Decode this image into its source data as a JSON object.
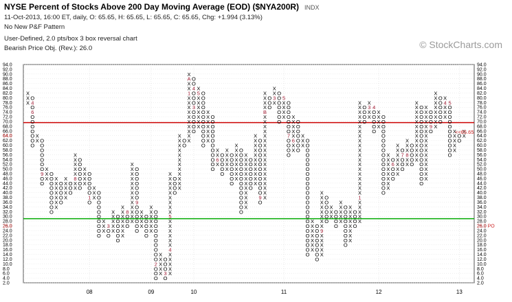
{
  "header": {
    "title": "NYSE Percent of Stocks Above 200 Day Moving Average (EOD) ($NYA200R)",
    "exchange": "INDX",
    "line1": "11-Oct-2013, 16:00 ET, daily, O: 65.65, H: 65.65, L: 65.65, C: 65.65, Chg: +1.994 (3.13%)",
    "line2": "No New P&F Pattern",
    "line3": "User-Defined, 2.0 pts/box 3 box reversal chart",
    "line4": "Bearish Price Obj. (Rev.): 26.0"
  },
  "watermark": "© StockCharts.com",
  "colors": {
    "x_mark": "#000000",
    "o_mark": "#000000",
    "month_mark": "#a01830",
    "resistance": "#cc0000",
    "support": "#00aa00",
    "grid": "#dcdcdc",
    "last_price": "#cc2222"
  },
  "chart_data": {
    "type": "point-and-figure",
    "box_size": 2.0,
    "reversal": 3,
    "ylim": [
      2,
      94
    ],
    "y_ticks": [
      "2.0",
      "4.0",
      "6.0",
      "8.0",
      "10.0",
      "12.0",
      "14.0",
      "16.0",
      "18.0",
      "20.0",
      "22.0",
      "24.0",
      "26.0",
      "28.0",
      "30.0",
      "32.0",
      "34.0",
      "36.0",
      "38.0",
      "40.0",
      "42.0",
      "44.0",
      "46.0",
      "48.0",
      "50.0",
      "52.0",
      "54.0",
      "56.0",
      "58.0",
      "60.0",
      "62.0",
      "64.0",
      "66.0",
      "68.0",
      "70.0",
      "72.0",
      "74.0",
      "76.0",
      "78.0",
      "80.0",
      "82.0",
      "84.0",
      "86.0",
      "88.0",
      "90.0",
      "92.0",
      "94.0"
    ],
    "year_labels": [
      {
        "label": "08",
        "col": 13
      },
      {
        "label": "09",
        "col": 26
      },
      {
        "label": "10",
        "col": 35
      },
      {
        "label": "11",
        "col": 54
      },
      {
        "label": "12",
        "col": 74
      },
      {
        "label": "13",
        "col": 91
      }
    ],
    "columns": [
      {
        "t": "X",
        "lo": 78,
        "hi": 82
      },
      {
        "t": "O",
        "lo": 60,
        "hi": 80
      },
      {
        "t": "X",
        "lo": 62,
        "hi": 64
      },
      {
        "t": "O",
        "lo": 44,
        "hi": 62
      },
      {
        "t": "X",
        "lo": 46,
        "hi": 50
      },
      {
        "t": "O",
        "lo": 32,
        "hi": 48
      },
      {
        "t": "X",
        "lo": 34,
        "hi": 46
      },
      {
        "t": "O",
        "lo": 36,
        "hi": 44
      },
      {
        "t": "X",
        "lo": 38,
        "hi": 46
      },
      {
        "t": "O",
        "lo": 40,
        "hi": 44
      },
      {
        "t": "X",
        "lo": 42,
        "hi": 56
      },
      {
        "t": "O",
        "lo": 42,
        "hi": 54
      },
      {
        "t": "X",
        "lo": 44,
        "hi": 50
      },
      {
        "t": "O",
        "lo": 36,
        "hi": 48
      },
      {
        "t": "X",
        "lo": 38,
        "hi": 42
      },
      {
        "t": "O",
        "lo": 22,
        "hi": 40
      },
      {
        "t": "X",
        "lo": 24,
        "hi": 28
      },
      {
        "t": "O",
        "lo": 22,
        "hi": 26
      },
      {
        "t": "X",
        "lo": 24,
        "hi": 32
      },
      {
        "t": "O",
        "lo": 20,
        "hi": 30
      },
      {
        "t": "X",
        "lo": 22,
        "hi": 34
      },
      {
        "t": "O",
        "lo": 26,
        "hi": 32
      },
      {
        "t": "X",
        "lo": 28,
        "hi": 52
      },
      {
        "t": "O",
        "lo": 24,
        "hi": 50
      },
      {
        "t": "X",
        "lo": 26,
        "hi": 32
      },
      {
        "t": "O",
        "lo": 22,
        "hi": 30
      },
      {
        "t": "X",
        "lo": 24,
        "hi": 34
      },
      {
        "t": "O",
        "lo": 4,
        "hi": 32
      },
      {
        "t": "X",
        "lo": 6,
        "hi": 14
      },
      {
        "t": "O",
        "lo": 4,
        "hi": 12
      },
      {
        "t": "X",
        "lo": 6,
        "hi": 48
      },
      {
        "t": "O",
        "lo": 40,
        "hi": 46
      },
      {
        "t": "X",
        "lo": 42,
        "hi": 64
      },
      {
        "t": "O",
        "lo": 60,
        "hi": 62
      },
      {
        "t": "X",
        "lo": 62,
        "hi": 90
      },
      {
        "t": "O",
        "lo": 66,
        "hi": 88
      },
      {
        "t": "X",
        "lo": 68,
        "hi": 84
      },
      {
        "t": "O",
        "lo": 60,
        "hi": 82
      },
      {
        "t": "X",
        "lo": 62,
        "hi": 74
      },
      {
        "t": "O",
        "lo": 50,
        "hi": 72
      },
      {
        "t": "X",
        "lo": 52,
        "hi": 58
      },
      {
        "t": "O",
        "lo": 48,
        "hi": 56
      },
      {
        "t": "X",
        "lo": 50,
        "hi": 58
      },
      {
        "t": "O",
        "lo": 44,
        "hi": 56
      },
      {
        "t": "X",
        "lo": 46,
        "hi": 60
      },
      {
        "t": "O",
        "lo": 32,
        "hi": 58
      },
      {
        "t": "X",
        "lo": 34,
        "hi": 56
      },
      {
        "t": "O",
        "lo": 42,
        "hi": 54
      },
      {
        "t": "X",
        "lo": 44,
        "hi": 64
      },
      {
        "t": "O",
        "lo": 36,
        "hi": 62
      },
      {
        "t": "X",
        "lo": 38,
        "hi": 82
      },
      {
        "t": "O",
        "lo": 76,
        "hi": 80
      },
      {
        "t": "X",
        "lo": 78,
        "hi": 84
      },
      {
        "t": "O",
        "lo": 70,
        "hi": 82
      },
      {
        "t": "X",
        "lo": 72,
        "hi": 80
      },
      {
        "t": "O",
        "lo": 56,
        "hi": 78
      },
      {
        "t": "X",
        "lo": 58,
        "hi": 72
      },
      {
        "t": "O",
        "lo": 58,
        "hi": 70
      },
      {
        "t": "X",
        "lo": 60,
        "hi": 64
      },
      {
        "t": "O",
        "lo": 14,
        "hi": 62
      },
      {
        "t": "X",
        "lo": 16,
        "hi": 28
      },
      {
        "t": "O",
        "lo": 12,
        "hi": 26
      },
      {
        "t": "X",
        "lo": 14,
        "hi": 40
      },
      {
        "t": "O",
        "lo": 28,
        "hi": 38
      },
      {
        "t": "X",
        "lo": 30,
        "hi": 34
      },
      {
        "t": "O",
        "lo": 26,
        "hi": 32
      },
      {
        "t": "X",
        "lo": 28,
        "hi": 36
      },
      {
        "t": "O",
        "lo": 18,
        "hi": 34
      },
      {
        "t": "X",
        "lo": 20,
        "hi": 34
      },
      {
        "t": "O",
        "lo": 26,
        "hi": 32
      },
      {
        "t": "X",
        "lo": 28,
        "hi": 78
      },
      {
        "t": "O",
        "lo": 70,
        "hi": 76
      },
      {
        "t": "X",
        "lo": 72,
        "hi": 78
      },
      {
        "t": "O",
        "lo": 66,
        "hi": 76
      },
      {
        "t": "X",
        "lo": 68,
        "hi": 74
      },
      {
        "t": "O",
        "lo": 40,
        "hi": 72
      },
      {
        "t": "X",
        "lo": 42,
        "hi": 56
      },
      {
        "t": "O",
        "lo": 46,
        "hi": 54
      },
      {
        "t": "X",
        "lo": 48,
        "hi": 60
      },
      {
        "t": "O",
        "lo": 50,
        "hi": 58
      },
      {
        "t": "X",
        "lo": 52,
        "hi": 62
      },
      {
        "t": "O",
        "lo": 52,
        "hi": 60
      },
      {
        "t": "X",
        "lo": 54,
        "hi": 78
      },
      {
        "t": "O",
        "lo": 44,
        "hi": 76
      },
      {
        "t": "X",
        "lo": 46,
        "hi": 76
      },
      {
        "t": "O",
        "lo": 66,
        "hi": 74
      },
      {
        "t": "X",
        "lo": 68,
        "hi": 82
      },
      {
        "t": "O",
        "lo": 70,
        "hi": 80
      },
      {
        "t": "X",
        "lo": 72,
        "hi": 80
      },
      {
        "t": "O",
        "lo": 56,
        "hi": 78
      },
      {
        "t": "X",
        "lo": 58,
        "hi": 66
      },
      {
        "t": "O",
        "lo": 62,
        "hi": 64
      },
      {
        "t": "X",
        "lo": 64,
        "hi": 66
      }
    ],
    "month_markers": [
      {
        "col": 1,
        "y": 78,
        "label": "4"
      },
      {
        "col": 2,
        "y": 78,
        "label": "5"
      },
      {
        "col": 1,
        "y": 74,
        "label": "6"
      },
      {
        "col": 3,
        "y": 48,
        "label": "9"
      },
      {
        "col": 10,
        "y": 46,
        "label": "8"
      },
      {
        "col": 12,
        "y": 40,
        "label": "C"
      },
      {
        "col": 13,
        "y": 38,
        "label": "1"
      },
      {
        "col": 17,
        "y": 26,
        "label": "3"
      },
      {
        "col": 18,
        "y": 42,
        "label": "5"
      },
      {
        "col": 19,
        "y": 42,
        "label": "6"
      },
      {
        "col": 21,
        "y": 32,
        "label": "8"
      },
      {
        "col": 23,
        "y": 36,
        "label": "9"
      },
      {
        "col": 26,
        "y": 6,
        "label": "1"
      },
      {
        "col": 27,
        "y": 10,
        "label": "2"
      },
      {
        "col": 29,
        "y": 6,
        "label": "3"
      },
      {
        "col": 30,
        "y": 16,
        "label": "4"
      },
      {
        "col": 30,
        "y": 30,
        "label": "5"
      },
      {
        "col": 32,
        "y": 70,
        "label": "7"
      },
      {
        "col": 34,
        "y": 88,
        "label": "A"
      },
      {
        "col": 34,
        "y": 82,
        "label": "1"
      },
      {
        "col": 35,
        "y": 84,
        "label": "4"
      },
      {
        "col": 36,
        "y": 82,
        "label": "5"
      },
      {
        "col": 35,
        "y": 76,
        "label": "3"
      },
      {
        "col": 40,
        "y": 54,
        "label": "6"
      },
      {
        "col": 46,
        "y": 62,
        "label": "8"
      },
      {
        "col": 47,
        "y": 38,
        "label": "7"
      },
      {
        "col": 49,
        "y": 38,
        "label": "9"
      },
      {
        "col": 51,
        "y": 82,
        "label": "2"
      },
      {
        "col": 52,
        "y": 80,
        "label": "3"
      },
      {
        "col": 54,
        "y": 80,
        "label": "5"
      },
      {
        "col": 50,
        "y": 74,
        "label": "B"
      },
      {
        "col": 51,
        "y": 72,
        "label": "C"
      },
      {
        "col": 55,
        "y": 64,
        "label": "7"
      },
      {
        "col": 56,
        "y": 62,
        "label": "6"
      },
      {
        "col": 60,
        "y": 48,
        "label": "8"
      },
      {
        "col": 63,
        "y": 14,
        "label": "A"
      },
      {
        "col": 62,
        "y": 24,
        "label": "9"
      },
      {
        "col": 70,
        "y": 38,
        "label": "1"
      },
      {
        "col": 71,
        "y": 36,
        "label": "2"
      },
      {
        "col": 72,
        "y": 76,
        "label": "3"
      },
      {
        "col": 73,
        "y": 76,
        "label": "4"
      },
      {
        "col": 76,
        "y": 72,
        "label": "5"
      },
      {
        "col": 77,
        "y": 52,
        "label": "6"
      },
      {
        "col": 79,
        "y": 56,
        "label": "7"
      },
      {
        "col": 80,
        "y": 56,
        "label": "8"
      },
      {
        "col": 85,
        "y": 68,
        "label": "9"
      },
      {
        "col": 86,
        "y": 64,
        "label": "C"
      },
      {
        "col": 87,
        "y": 68,
        "label": "1"
      },
      {
        "col": 86,
        "y": 58,
        "label": "B"
      },
      {
        "col": 88,
        "y": 78,
        "label": "4"
      },
      {
        "col": 89,
        "y": 78,
        "label": "5"
      },
      {
        "col": 90,
        "y": 72,
        "label": "6"
      },
      {
        "col": 91,
        "y": 68,
        "label": "8"
      },
      {
        "col": 93,
        "y": 66,
        "label": "A"
      },
      {
        "col": 92,
        "y": 56,
        "label": "9"
      }
    ],
    "resistance_line": 69.5,
    "support_line": 29.0,
    "last_price": {
      "value": 65.65,
      "label": "<<65.65"
    },
    "side_labels": [
      {
        "value": 64.0,
        "label": "64.0",
        "side": "left"
      },
      {
        "value": 26.0,
        "label": "26.0",
        "side": "left"
      },
      {
        "value": 26.0,
        "label": "26.0 PO",
        "side": "right"
      }
    ]
  }
}
